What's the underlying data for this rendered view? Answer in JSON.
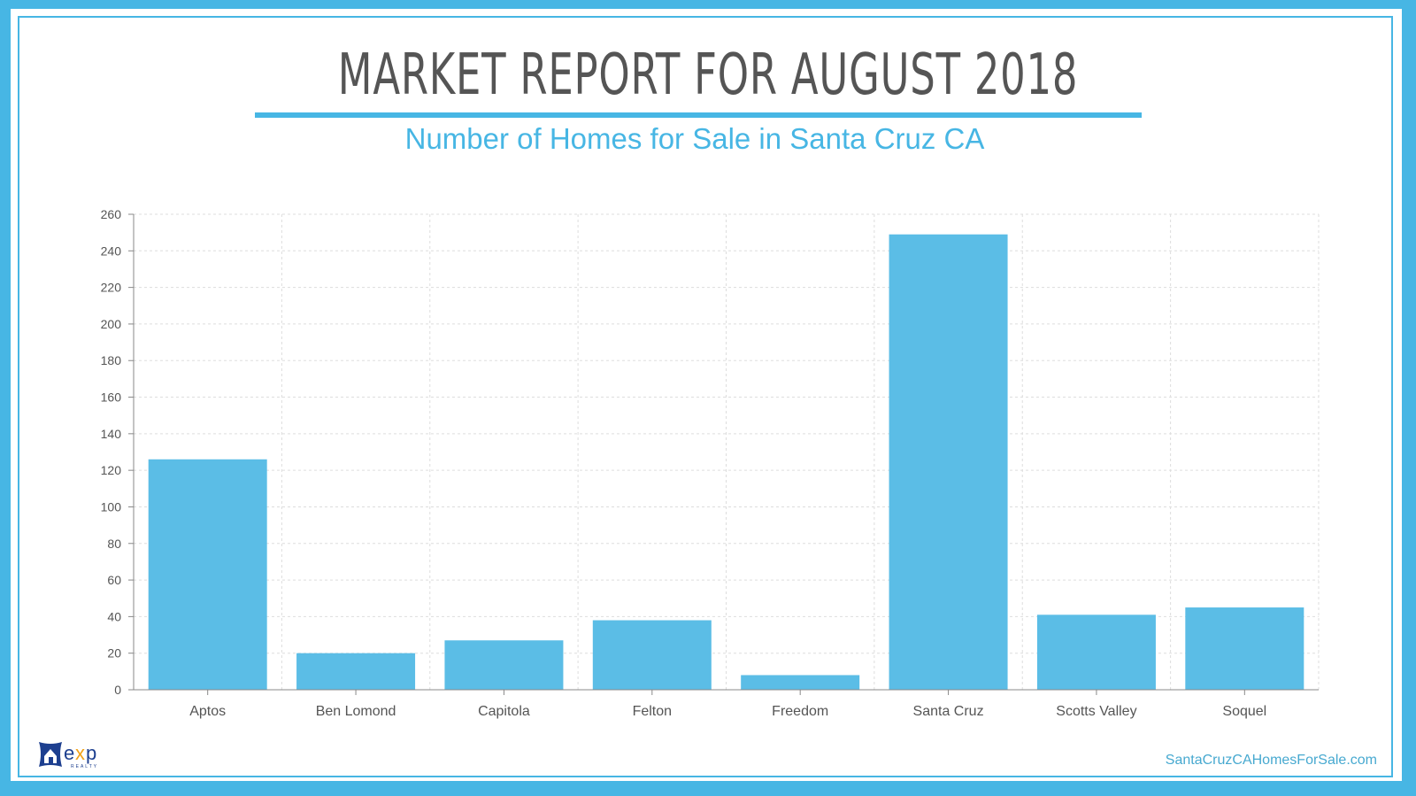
{
  "title": "MARKET REPORT FOR AUGUST 2018",
  "subtitle": "Number of Homes for Sale in Santa Cruz CA",
  "website": "SantaCruzCAHomesForSale.com",
  "logo_text": "eXp REALTY",
  "colors": {
    "accent": "#47b6e4",
    "bar": "#5bbde6",
    "title": "#555555"
  },
  "chart_data": {
    "type": "bar",
    "categories": [
      "Aptos",
      "Ben Lomond",
      "Capitola",
      "Felton",
      "Freedom",
      "Santa Cruz",
      "Scotts Valley",
      "Soquel"
    ],
    "values": [
      126,
      20,
      27,
      38,
      8,
      249,
      41,
      45
    ],
    "ylim": [
      0,
      260
    ],
    "yticks": [
      0,
      20,
      40,
      60,
      80,
      100,
      120,
      140,
      160,
      180,
      200,
      220,
      240,
      260
    ],
    "grid": true,
    "xlabel": "",
    "ylabel": ""
  }
}
